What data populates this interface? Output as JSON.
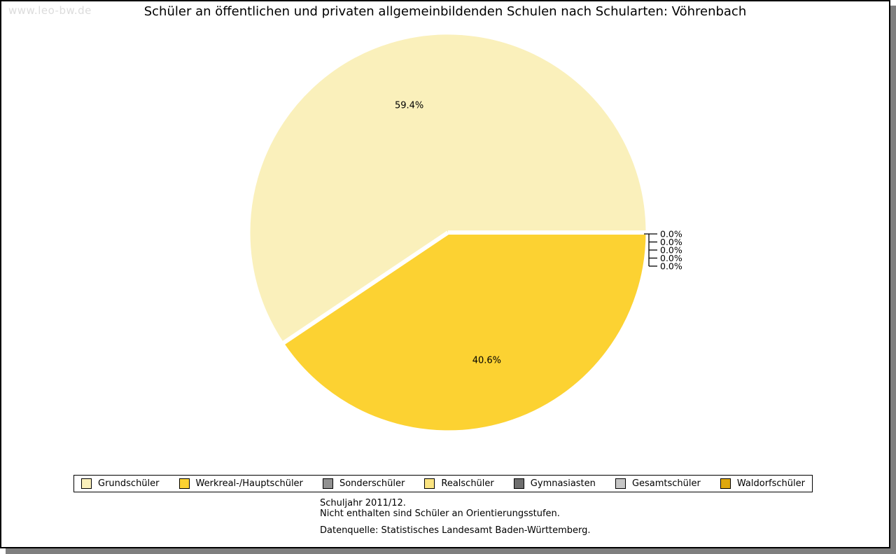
{
  "watermark": "www.leo-bw.de",
  "title": "Schüler an öffentlichen und privaten allgemeinbildenden Schulen nach Schularten: Vöhrenbach",
  "footnotes": {
    "line1": "Schuljahr 2011/12.",
    "line2": "Nicht enthalten sind Schüler an Orientierungsstufen.",
    "source": "Datenquelle: Statistisches Landesamt Baden-Württemberg."
  },
  "chart_data": {
    "type": "pie",
    "title": "Schüler an öffentlichen und privaten allgemeinbildenden Schulen nach Schularten: Vöhrenbach",
    "unit": "%",
    "legend_position": "bottom",
    "label_format": "percent",
    "slices": [
      {
        "label": "Grundschüler",
        "value": 59.4,
        "display": "59.4%",
        "color": "#FAF0BB"
      },
      {
        "label": "Werkreal-/Hauptschüler",
        "value": 40.6,
        "display": "40.6%",
        "color": "#FCD232"
      },
      {
        "label": "Sonderschüler",
        "value": 0.0,
        "display": "0.0%",
        "color": "#919191"
      },
      {
        "label": "Realschüler",
        "value": 0.0,
        "display": "0.0%",
        "color": "#FAE380"
      },
      {
        "label": "Gymnasiasten",
        "value": 0.0,
        "display": "0.0%",
        "color": "#6E6E6E"
      },
      {
        "label": "Gesamtschüler",
        "value": 0.0,
        "display": "0.0%",
        "color": "#C6C6C6"
      },
      {
        "label": "Waldorfschüler",
        "value": 0.0,
        "display": "0.0%",
        "color": "#DFA80D"
      }
    ]
  }
}
